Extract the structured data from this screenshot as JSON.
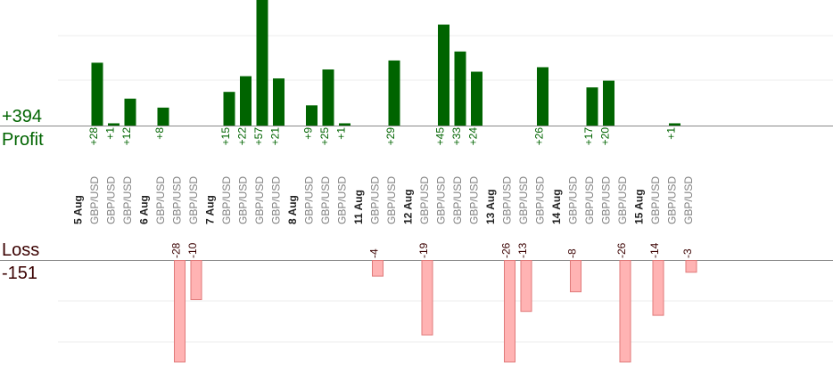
{
  "chart_data": {
    "type": "bar",
    "profit_total": "+394",
    "profit_label": "Profit",
    "loss_label": "Loss",
    "loss_total": "-151",
    "colors": {
      "profit": "#006400",
      "loss": "#ffb3b3",
      "loss_text": "#3a0000"
    },
    "days": [
      {
        "date": "5 Aug",
        "trades": [
          {
            "pair": "GBP/USD",
            "value": 28
          },
          {
            "pair": "GBP/USD",
            "value": 1
          },
          {
            "pair": "GBP/USD",
            "value": 12
          }
        ]
      },
      {
        "date": "6 Aug",
        "trades": [
          {
            "pair": "GBP/USD",
            "value": 8
          },
          {
            "pair": "GBP/USD",
            "value": -28
          },
          {
            "pair": "GBP/USD",
            "value": -10
          }
        ]
      },
      {
        "date": "7 Aug",
        "trades": [
          {
            "pair": "GBP/USD",
            "value": 15
          },
          {
            "pair": "GBP/USD",
            "value": 22
          },
          {
            "pair": "GBP/USD",
            "value": 57
          },
          {
            "pair": "GBP/USD",
            "value": 21
          }
        ]
      },
      {
        "date": "8 Aug",
        "trades": [
          {
            "pair": "GBP/USD",
            "value": 9
          },
          {
            "pair": "GBP/USD",
            "value": 25
          },
          {
            "pair": "GBP/USD",
            "value": 1
          }
        ]
      },
      {
        "date": "11 Aug",
        "trades": [
          {
            "pair": "GBP/USD",
            "value": -4
          },
          {
            "pair": "GBP/USD",
            "value": 29
          }
        ]
      },
      {
        "date": "12 Aug",
        "trades": [
          {
            "pair": "GBP/USD",
            "value": -19
          },
          {
            "pair": "GBP/USD",
            "value": 45
          },
          {
            "pair": "GBP/USD",
            "value": 33
          },
          {
            "pair": "GBP/USD",
            "value": 24
          }
        ]
      },
      {
        "date": "13 Aug",
        "trades": [
          {
            "pair": "GBP/USD",
            "value": -26
          },
          {
            "pair": "GBP/USD",
            "value": -13
          },
          {
            "pair": "GBP/USD",
            "value": 26
          }
        ]
      },
      {
        "date": "14 Aug",
        "trades": [
          {
            "pair": "GBP/USD",
            "value": -8
          },
          {
            "pair": "GBP/USD",
            "value": 17
          },
          {
            "pair": "GBP/USD",
            "value": 20
          },
          {
            "pair": "GBP/USD",
            "value": -26
          }
        ]
      },
      {
        "date": "15 Aug",
        "trades": [
          {
            "pair": "GBP/USD",
            "value": -14
          },
          {
            "pair": "GBP/USD",
            "value": 1
          },
          {
            "pair": "GBP/USD",
            "value": -3
          }
        ]
      }
    ]
  }
}
